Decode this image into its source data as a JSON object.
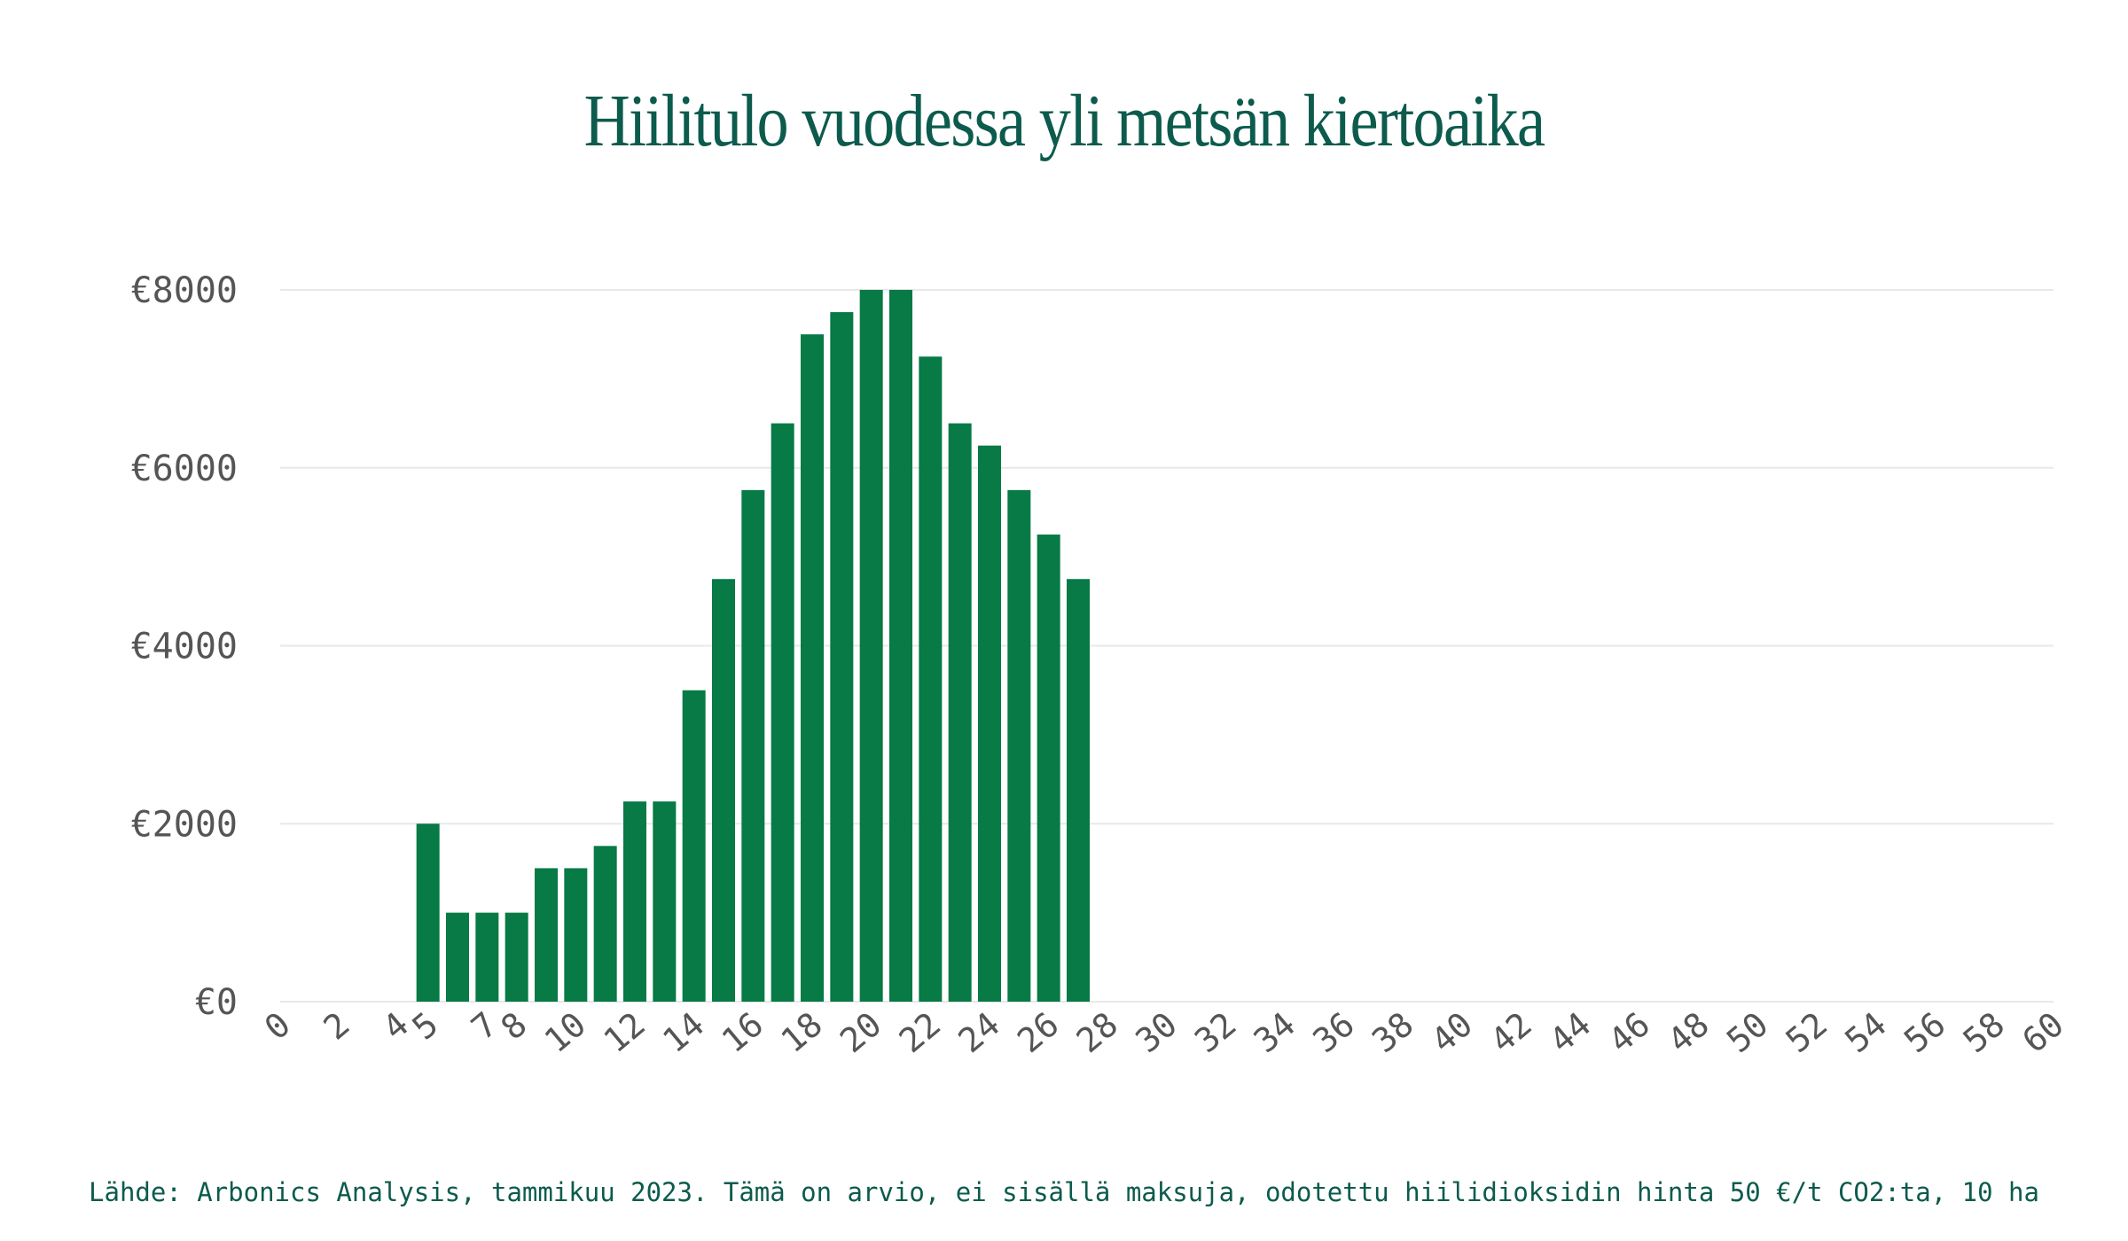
{
  "chart_data": {
    "type": "bar",
    "title": "Hiilitulo vuodessa yli metsän kiertoaika",
    "xlabel": "",
    "ylabel": "",
    "x": [
      5,
      6,
      7,
      8,
      9,
      10,
      11,
      12,
      13,
      14,
      15,
      16,
      17,
      18,
      19,
      20,
      21,
      22,
      23,
      24,
      25,
      26,
      27
    ],
    "values": [
      2000,
      1000,
      1000,
      1000,
      1500,
      1500,
      1750,
      2250,
      2250,
      3500,
      4750,
      5750,
      6500,
      7500,
      7750,
      8000,
      8000,
      7250,
      6500,
      6250,
      5750,
      5250,
      4750
    ],
    "xlim": [
      0,
      60
    ],
    "ylim": [
      0,
      8000
    ],
    "x_ticks": [
      "0",
      "2",
      "4",
      "5",
      "7",
      "8",
      "10",
      "12",
      "14",
      "16",
      "18",
      "20",
      "22",
      "24",
      "26",
      "28",
      "30",
      "32",
      "34",
      "36",
      "38",
      "40",
      "42",
      "44",
      "46",
      "48",
      "50",
      "52",
      "54",
      "56",
      "58",
      "60"
    ],
    "y_ticks": [
      "€0",
      "€2000",
      "€4000",
      "€6000",
      "€8000"
    ],
    "grid": true,
    "bar_color": "#077a45",
    "grid_color": "#e8e8e8",
    "title_color": "#0c5b4d"
  },
  "source": "Lähde: Arbonics Analysis, tammikuu 2023. Tämä on arvio, ei sisällä maksuja, odotettu hiilidioksidin hinta 50 €/t CO2:ta, 10 ha"
}
